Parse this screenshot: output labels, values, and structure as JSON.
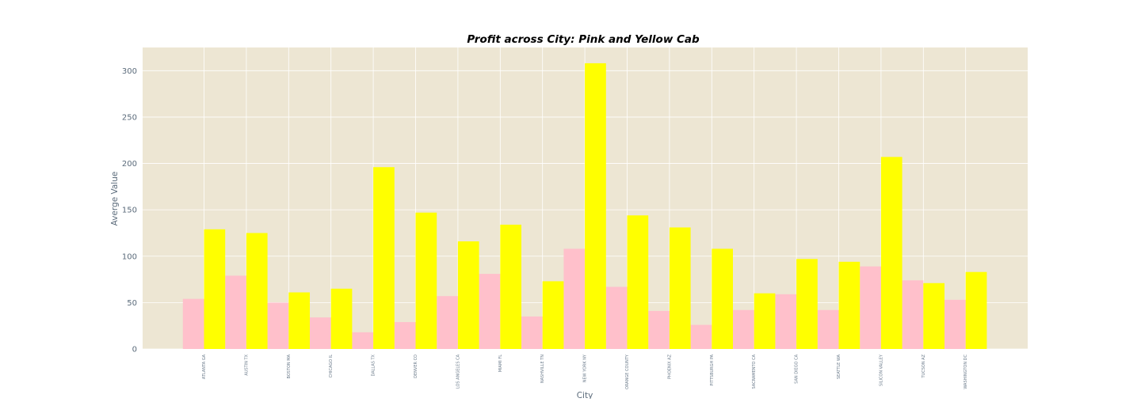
{
  "chart_data": {
    "type": "bar",
    "title": "Profit across City: Pink and Yellow Cab",
    "xlabel": "City",
    "ylabel": "Averge Value",
    "ylim": [
      0,
      325
    ],
    "yticks": [
      0,
      50,
      100,
      150,
      200,
      250,
      300
    ],
    "grid": true,
    "legend": "none",
    "background_color": "#EDE6D3",
    "categories": [
      "ATLANTA GA",
      "AUSTIN TX",
      "BOSTON MA",
      "CHICAGO IL",
      "DALLAS TX",
      "DENVER CO",
      "LOS ANGELES CA",
      "MIAMI FL",
      "NASHVILLE TN",
      "NEW YORK NY",
      "ORANGE COUNTY",
      "PHOENIX AZ",
      "PITTSBURGH PA",
      "SACRAMENTO CA",
      "SAN DIEGO CA",
      "SEATTLE WA",
      "SILICON VALLEY",
      "TUCSON AZ",
      "WASHINGTON DC"
    ],
    "series": [
      {
        "color": "#FFC0CB",
        "values": [
          54,
          79,
          50,
          34,
          18,
          29,
          57,
          81,
          35,
          108,
          67,
          41,
          26,
          42,
          59,
          42,
          89,
          74,
          53
        ]
      },
      {
        "color": "#FFFF00",
        "values": [
          129,
          125,
          61,
          65,
          196,
          147,
          116,
          134,
          73,
          308,
          144,
          131,
          108,
          60,
          97,
          94,
          207,
          71,
          83
        ]
      }
    ]
  }
}
